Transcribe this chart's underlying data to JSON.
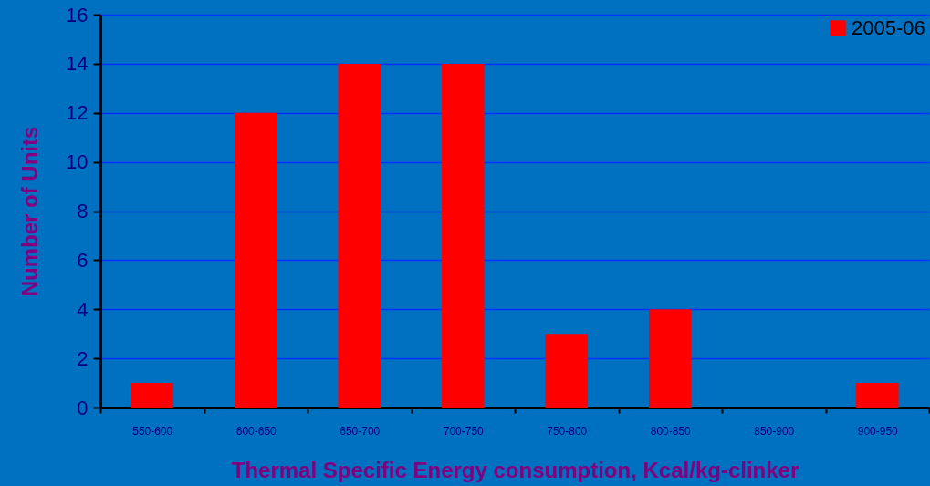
{
  "chart_data": {
    "type": "bar",
    "xlabel": "Thermal Specific Energy consumption, Kcal/kg-clinker",
    "ylabel": "Number of Units",
    "categories": [
      "550-600",
      "600-650",
      "650-700",
      "700-750",
      "750-800",
      "800-850",
      "850-900",
      "900-950"
    ],
    "series": [
      {
        "name": "2005-06",
        "color": "#ff0000",
        "values": [
          1,
          12,
          14,
          14,
          3,
          4,
          0,
          1
        ]
      }
    ],
    "ylim": [
      0,
      16
    ],
    "yticks": [
      0,
      2,
      4,
      6,
      8,
      10,
      12,
      14,
      16
    ],
    "grid": "y",
    "legend": "top right"
  }
}
